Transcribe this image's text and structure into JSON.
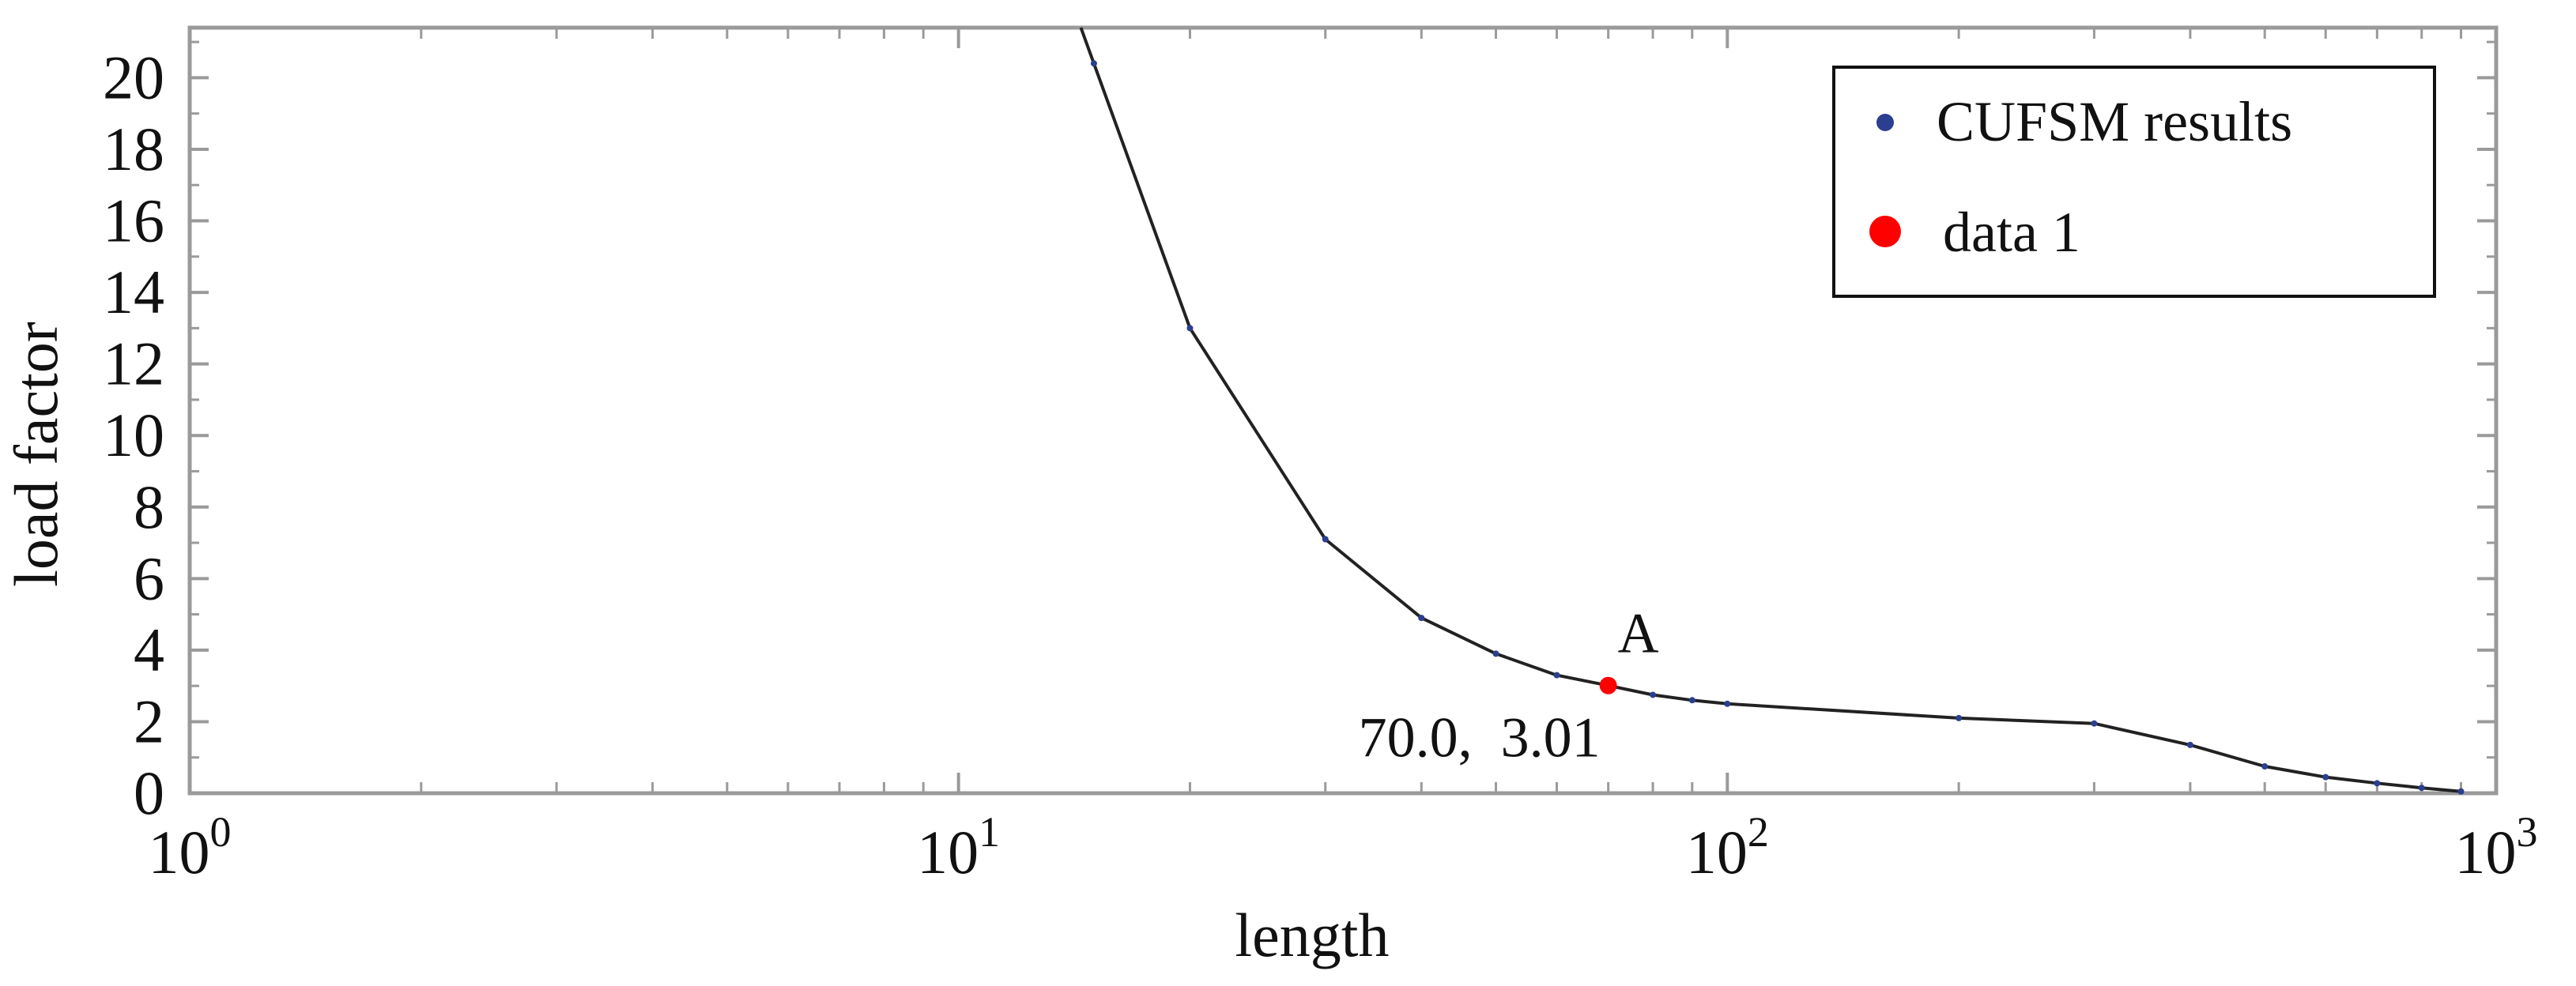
{
  "chart_data": {
    "type": "line",
    "x_scale": "log",
    "xlabel": "length",
    "ylabel": "load factor",
    "xlim": [
      1,
      1000
    ],
    "ylim": [
      0,
      21.4
    ],
    "x_ticks": [
      {
        "value": 1,
        "base": "10",
        "exp": "0"
      },
      {
        "value": 10,
        "base": "10",
        "exp": "1"
      },
      {
        "value": 100,
        "base": "10",
        "exp": "2"
      },
      {
        "value": 1000,
        "base": "10",
        "exp": "3"
      }
    ],
    "y_ticks": [
      0,
      2,
      4,
      6,
      8,
      10,
      12,
      14,
      16,
      18,
      20
    ],
    "grid": false,
    "legend_position": "top-right",
    "series": [
      {
        "name": "CUFSM results",
        "color": "#2a3f8f",
        "line_color": "#222222",
        "x": [
          15,
          20,
          30,
          40,
          50,
          60,
          70,
          80,
          90,
          100,
          200,
          300,
          400,
          500,
          600,
          700,
          800,
          900
        ],
        "y": [
          20.4,
          13.0,
          7.1,
          4.9,
          3.9,
          3.3,
          3.01,
          2.75,
          2.6,
          2.5,
          2.1,
          1.95,
          1.35,
          0.75,
          0.45,
          0.28,
          0.15,
          0.05
        ]
      },
      {
        "name": "data 1",
        "color": "#ff0000",
        "x": [
          70.0
        ],
        "y": [
          3.01
        ]
      }
    ],
    "annotations": [
      {
        "text": "A",
        "x": 70.0,
        "y": 3.01
      },
      {
        "text": "70.0,  3.01",
        "x": 70.0,
        "y": 3.01
      }
    ]
  }
}
